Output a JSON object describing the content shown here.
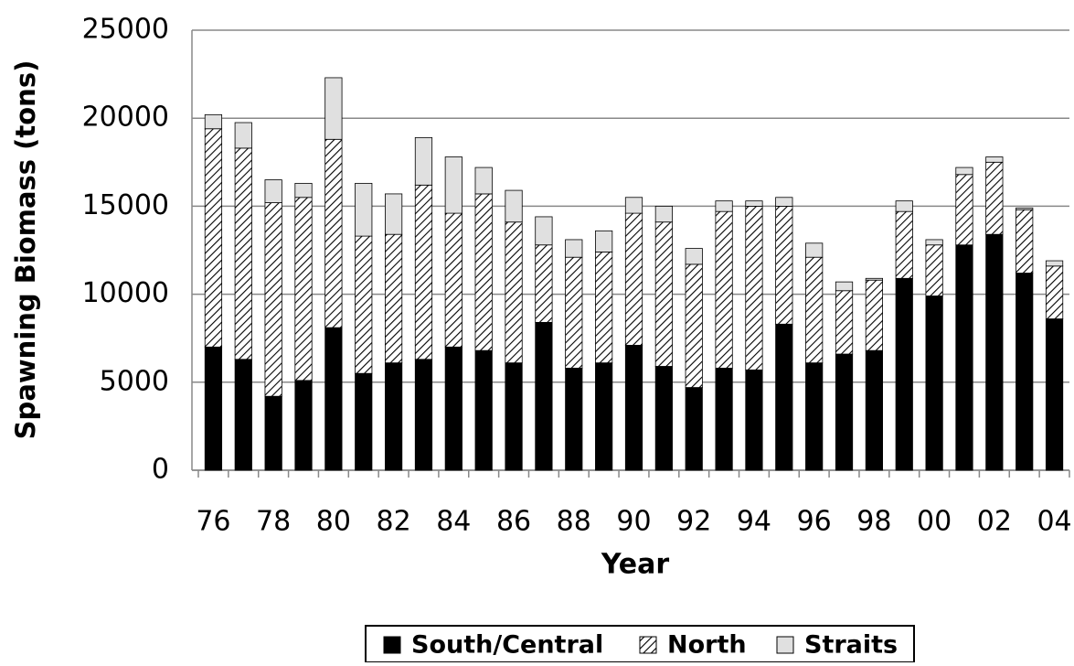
{
  "chart_data": {
    "type": "stacked_bar",
    "x_label": "Year",
    "y_label": "Spawning Biomass (tons)",
    "categories": [
      "76",
      null,
      "78",
      null,
      "80",
      null,
      "82",
      null,
      "84",
      null,
      "86",
      null,
      "88",
      null,
      "90",
      null,
      "92",
      null,
      "94",
      null,
      "96",
      null,
      "98",
      null,
      "00",
      null,
      "02",
      null,
      "04"
    ],
    "series": [
      {
        "name": "South/Central",
        "color": "#000000",
        "pattern": "solid",
        "values": [
          7000,
          6300,
          4200,
          5100,
          8100,
          5500,
          6100,
          6300,
          7000,
          6800,
          6100,
          8400,
          5800,
          6100,
          7100,
          5900,
          4700,
          5800,
          5700,
          8300,
          6100,
          6600,
          6800,
          10900,
          9900,
          12800,
          13400,
          11200,
          8600
        ]
      },
      {
        "name": "North",
        "color": "#000000",
        "pattern": "diagonal",
        "values": [
          12400,
          12000,
          11000,
          10400,
          10700,
          7800,
          7300,
          9900,
          7600,
          8900,
          8000,
          4400,
          6300,
          6300,
          7500,
          8200,
          7000,
          8900,
          9300,
          6700,
          6000,
          3600,
          4000,
          3800,
          2900,
          4000,
          4100,
          3600,
          3000
        ]
      },
      {
        "name": "Straits",
        "color": "#e0e0e0",
        "pattern": "solid",
        "values": [
          800,
          1450,
          1300,
          800,
          3500,
          3000,
          2300,
          2700,
          3200,
          1500,
          1800,
          1600,
          1000,
          1200,
          900,
          900,
          900,
          600,
          300,
          500,
          800,
          500,
          100,
          600,
          300,
          400,
          300,
          100,
          300
        ]
      }
    ],
    "ylim": [
      0,
      25000
    ],
    "yticks": [
      0,
      5000,
      10000,
      15000,
      20000,
      25000
    ],
    "grid": true,
    "legend": "bottom"
  }
}
